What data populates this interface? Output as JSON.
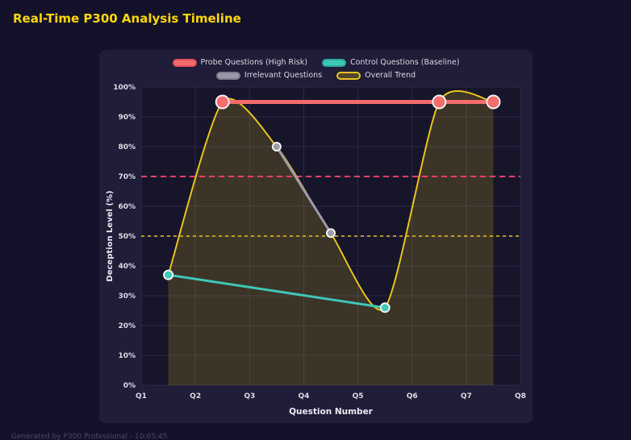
{
  "page": {
    "title": "Real-Time P300 Analysis Timeline",
    "footer": "Generated by P300 Professional - 10:05:45"
  },
  "colors": {
    "background": "#14122b",
    "panel": "#1f1d38",
    "plot_background": "#171529",
    "grid": "#2b2946",
    "title_text": "#ffd60a",
    "axis_text": "#eaeaf2",
    "tick_text": "#dcdce6",
    "legend_text": "#d9d9e3",
    "marker_stroke": "#f2f2f2",
    "footer_text": "#4c4a60"
  },
  "chart_data": {
    "type": "line",
    "title": "Real-Time P300 Analysis Timeline",
    "xlabel": "Question Number",
    "ylabel": "Deception Level (%)",
    "x_min": 1,
    "x_max": 8,
    "x_tick_labels": [
      "Q1",
      "Q2",
      "Q3",
      "Q4",
      "Q5",
      "Q6",
      "Q7",
      "Q8"
    ],
    "ylim": [
      0,
      100
    ],
    "y_tick_step": 10,
    "y_tick_labels": [
      "0%",
      "10%",
      "20%",
      "30%",
      "40%",
      "50%",
      "60%",
      "70%",
      "80%",
      "90%",
      "100%"
    ],
    "grid": true,
    "legend_position": "top",
    "series": [
      {
        "name": "Probe Questions (High Risk)",
        "color": "#f56c6c",
        "border": "#e04f5f",
        "legend_fill": "#f56c6c",
        "line_width": 5,
        "marker_radius": 8,
        "smooth": false,
        "points": [
          [
            2.5,
            95
          ],
          [
            6.5,
            95
          ],
          [
            7.5,
            95
          ]
        ]
      },
      {
        "name": "Control Questions (Baseline)",
        "color": "#3ec8b9",
        "border": "#2aa89b",
        "legend_fill": "#3ec8b9",
        "line_width": 3,
        "marker_radius": 5.5,
        "smooth": false,
        "points": [
          [
            1.5,
            37
          ],
          [
            5.5,
            26
          ]
        ]
      },
      {
        "name": "Irrelevant Questions",
        "color": "#9c9aa8",
        "border": "#7f7d8c",
        "legend_fill": "#9c9aa8",
        "line_width": 3,
        "marker_radius": 5,
        "smooth": false,
        "points": [
          [
            3.5,
            80
          ],
          [
            4.5,
            51
          ]
        ]
      },
      {
        "name": "Overall Trend",
        "color": "#e9c31d",
        "border": "#e9c31d",
        "legend_fill": "rgba(233,195,29,0.25)",
        "line_width": 2,
        "marker_radius": 0,
        "smooth": true,
        "fill_opacity": 0.18,
        "points": [
          [
            1.5,
            37
          ],
          [
            2.5,
            95
          ],
          [
            3.5,
            80
          ],
          [
            4.5,
            51
          ],
          [
            5.5,
            26
          ],
          [
            6.5,
            95
          ],
          [
            7.5,
            95
          ]
        ]
      }
    ],
    "thresholds": [
      {
        "y": 70,
        "color": "#ff3d63",
        "dash": "7 5",
        "width": 2
      },
      {
        "y": 50,
        "color": "#e9c31d",
        "dash": "4 4",
        "width": 1.5
      }
    ]
  }
}
